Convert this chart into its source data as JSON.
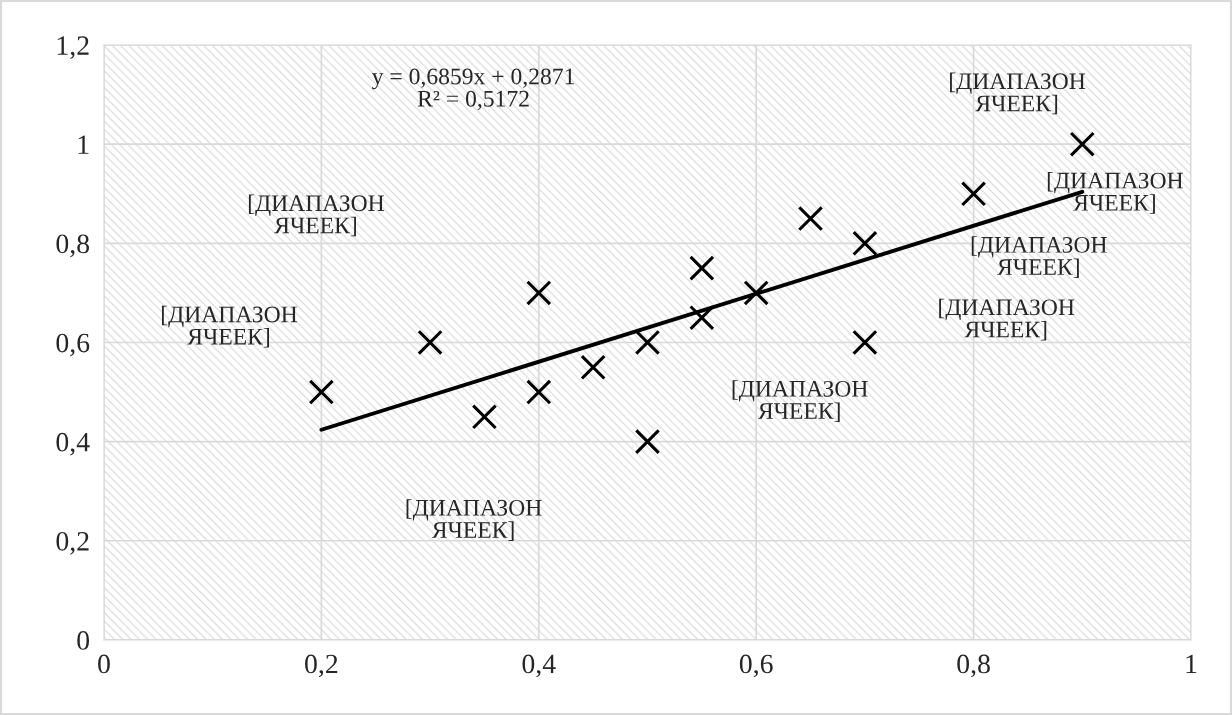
{
  "chart_data": {
    "type": "scatter",
    "x": [
      0.2,
      0.3,
      0.35,
      0.4,
      0.4,
      0.45,
      0.5,
      0.5,
      0.55,
      0.55,
      0.6,
      0.65,
      0.7,
      0.7,
      0.8,
      0.9
    ],
    "series": [
      {
        "color": "#000000",
        "marker": "cross",
        "values": [
          0.5,
          0.6,
          0.45,
          0.7,
          0.5,
          0.55,
          0.6,
          0.4,
          0.75,
          0.65,
          0.7,
          0.85,
          0.8,
          0.6,
          0.9,
          1.0
        ]
      },
      {
        "type": "line",
        "color": "#000000",
        "x": [
          0.2,
          0.9
        ],
        "values": [
          0.424,
          0.904
        ],
        "line_style": "solid",
        "marker": "none"
      }
    ],
    "xlim": [
      0,
      1
    ],
    "xticks": [
      {
        "value": 0,
        "label": "0"
      },
      {
        "value": 0.2,
        "label": "0,2"
      },
      {
        "value": 0.4,
        "label": "0,4"
      },
      {
        "value": 0.6,
        "label": "0,6"
      },
      {
        "value": 0.8,
        "label": "0,8"
      },
      {
        "value": 1,
        "label": "1"
      }
    ],
    "ylim": [
      0,
      1.2
    ],
    "yticks": [
      {
        "value": 0,
        "label": "0"
      },
      {
        "value": 0.2,
        "label": "0,2"
      },
      {
        "value": 0.4,
        "label": "0,4"
      },
      {
        "value": 0.6,
        "label": "0,6"
      },
      {
        "value": 0.8,
        "label": "0,8"
      },
      {
        "value": 1,
        "label": "1"
      },
      {
        "value": 1.2,
        "label": "1,2"
      }
    ],
    "grid": true,
    "legend": false,
    "annotations": [
      "y = 0,6859x + 0,2871\nR² = 0,5172",
      "[ДИАПАЗОН\nЯЧЕЕК]",
      "[ДИАПАЗОН\nЯЧЕЕК]",
      "[ДИАПАЗОН\nЯЧЕЕК]",
      "[ДИАПАЗОН\nЯЧЕЕК]",
      "[ДИАПАЗОН\nЯЧЕЕК]",
      "[ДИАПАЗОН\nЯЧЕЕК]",
      "[ДИАПАЗОН\nЯЧЕЕК]",
      "[ДИАПАЗОН\nЯЧЕЕК]"
    ]
  }
}
